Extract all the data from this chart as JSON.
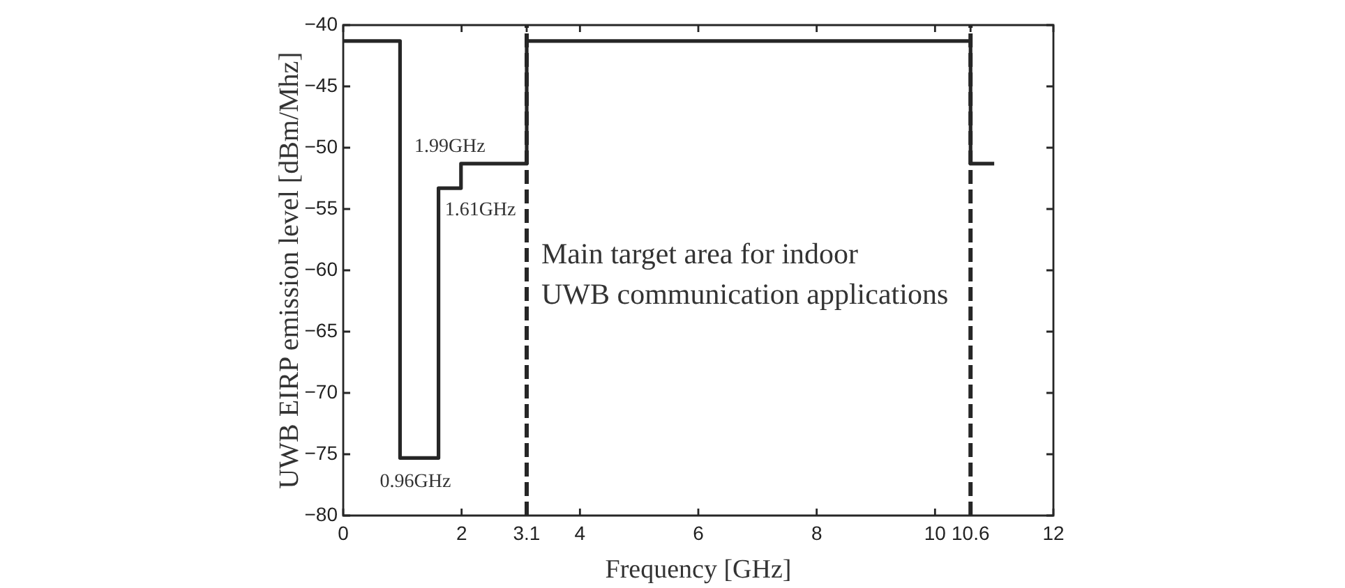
{
  "chart_data": {
    "type": "step",
    "xlabel": "Frequency [GHz]",
    "ylabel": "UWB EIRP emission level [dBm/Mhz]",
    "series": [
      {
        "color": "#262626",
        "x": [
          0,
          0.96,
          1.61,
          1.99,
          3.1,
          10.6,
          11.0
        ],
        "values": [
          -41.3,
          -75.3,
          -53.3,
          -51.3,
          -41.3,
          -51.3,
          -51.3
        ]
      }
    ],
    "ref_lines": [
      {
        "axis": "x",
        "value": 3.1,
        "color": "#262626",
        "line_style": "dashed"
      },
      {
        "axis": "x",
        "value": 10.6,
        "color": "#262626",
        "line_style": "dashed"
      }
    ],
    "xlim": [
      0,
      12
    ],
    "xticks": [
      0,
      2,
      3.1,
      4,
      6,
      8,
      10,
      10.6,
      12
    ],
    "ylim": [
      -80,
      -40
    ],
    "yticks": [
      -80,
      -75,
      -70,
      -65,
      -60,
      -55,
      -50,
      -45,
      -40
    ],
    "grid": false,
    "legend": false,
    "marker": "none",
    "line_style": "solid",
    "annotations": [
      {
        "text": "1.99GHz",
        "x": 1.99,
        "y": -51.3
      },
      {
        "text": "1.61GHz",
        "x": 1.61,
        "y": -53.3
      },
      {
        "text": "0.96GHz",
        "x": 0.96,
        "y": -75.3
      },
      "Main target area for indoor\nUWB communication applications"
    ]
  }
}
